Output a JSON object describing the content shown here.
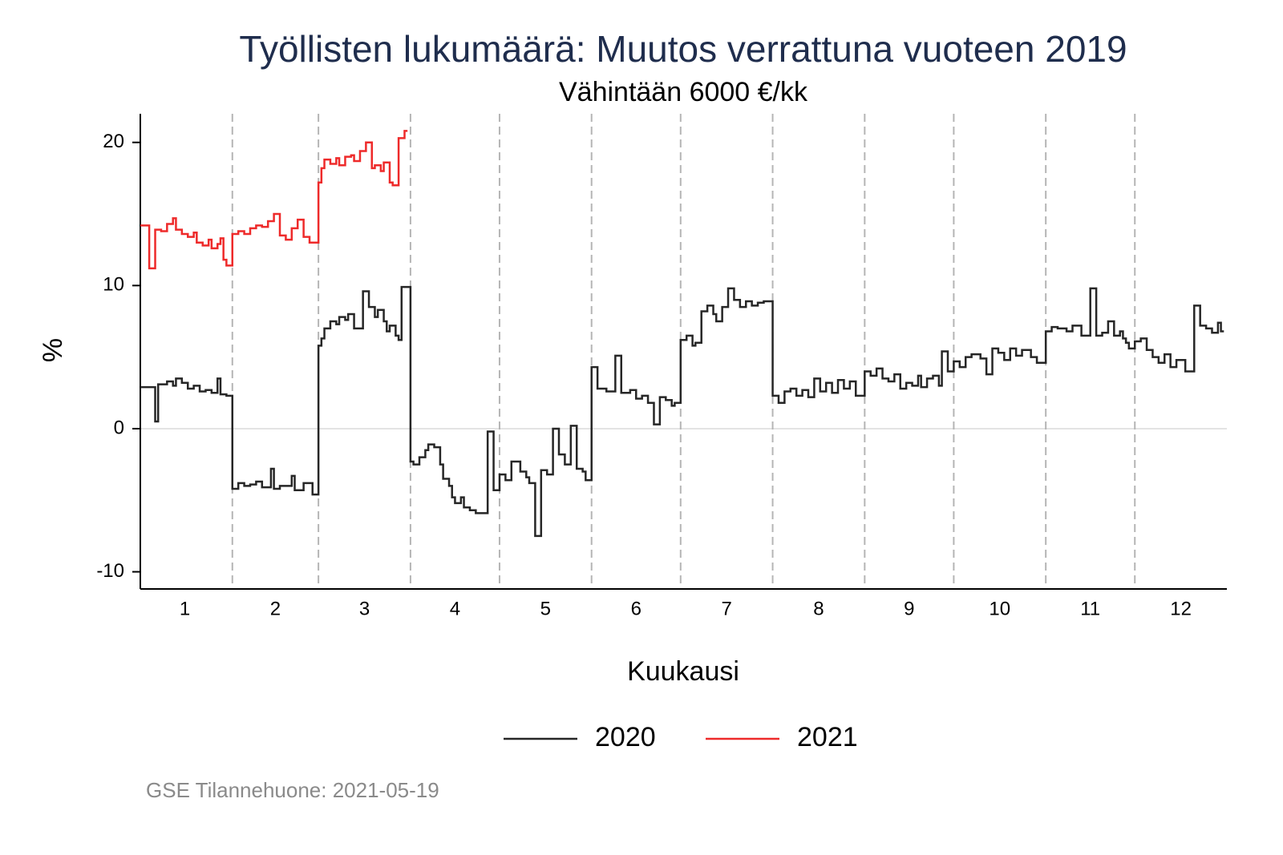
{
  "chart_data": {
    "type": "line",
    "step": "post",
    "title": "Työllisten lukumäärä: Muutos verrattuna vuoteen 2019",
    "subtitle": "Vähintään 6000 €/kk",
    "ylabel": "%",
    "xlabel": "Kuukausi",
    "source": "GSE Tilannehuone: 2021-05-19",
    "xlim": [
      1,
      367
    ],
    "ylim": [
      -11.2,
      22
    ],
    "yticks": [
      -10,
      0,
      10,
      20
    ],
    "xticks": [
      {
        "value": 16,
        "label": "1"
      },
      {
        "value": 46.5,
        "label": "2"
      },
      {
        "value": 76.5,
        "label": "3"
      },
      {
        "value": 107,
        "label": "4"
      },
      {
        "value": 137.5,
        "label": "5"
      },
      {
        "value": 168,
        "label": "6"
      },
      {
        "value": 198.5,
        "label": "7"
      },
      {
        "value": 229.5,
        "label": "8"
      },
      {
        "value": 260,
        "label": "9"
      },
      {
        "value": 290.5,
        "label": "10"
      },
      {
        "value": 321,
        "label": "11"
      },
      {
        "value": 351.5,
        "label": "12"
      }
    ],
    "vlines": [
      32,
      61,
      92,
      122,
      153,
      183,
      214,
      245,
      275,
      306,
      336
    ],
    "reference_line_y": 0,
    "legend": "bottom",
    "series": [
      {
        "name": "2020",
        "color": "#262626",
        "x": [
          1,
          6,
          7,
          10,
          12,
          13,
          15,
          17,
          19,
          21,
          23,
          25,
          27,
          28,
          30,
          32,
          34,
          36,
          38,
          40,
          42,
          45,
          46,
          48,
          52,
          53,
          56,
          59,
          61,
          62,
          63,
          65,
          67,
          68,
          70,
          71,
          73,
          76,
          78,
          80,
          81,
          83,
          84,
          85,
          87,
          88,
          89,
          92,
          93,
          95,
          97,
          98,
          100,
          102,
          103,
          105,
          106,
          107,
          109,
          110,
          112,
          114,
          118,
          120,
          122,
          124,
          126,
          129,
          131,
          132,
          134,
          136,
          138,
          140,
          142,
          144,
          146,
          148,
          150,
          151,
          153,
          155,
          158,
          161,
          163,
          166,
          168,
          170,
          172,
          174,
          176,
          178,
          180,
          181,
          183,
          185,
          187,
          188,
          190,
          192,
          194,
          195,
          197,
          199,
          201,
          203,
          205,
          207,
          209,
          211,
          214,
          216,
          218,
          220,
          222,
          224,
          226,
          228,
          230,
          232,
          234,
          236,
          238,
          240,
          242,
          245,
          247,
          249,
          251,
          253,
          255,
          257,
          259,
          261,
          263,
          264,
          266,
          268,
          270,
          271,
          273,
          275,
          277,
          279,
          281,
          284,
          286,
          288,
          290,
          292,
          294,
          296,
          298,
          301,
          303,
          306,
          308,
          310,
          313,
          315,
          318,
          321,
          323,
          325,
          327,
          329,
          331,
          332,
          333,
          334,
          336,
          338,
          340,
          342,
          344,
          346,
          348,
          350,
          353,
          356,
          358,
          360,
          362,
          364,
          365
        ],
        "values": [
          2.9,
          0.5,
          3.1,
          3.3,
          3.0,
          3.5,
          3.2,
          2.8,
          3.0,
          2.6,
          2.7,
          2.5,
          3.5,
          2.4,
          2.3,
          -4.2,
          -3.8,
          -4.0,
          -3.9,
          -3.7,
          -4.1,
          -2.8,
          -4.2,
          -4.0,
          -3.3,
          -4.3,
          -3.8,
          -4.6,
          5.8,
          6.3,
          7.0,
          7.5,
          7.3,
          7.8,
          7.6,
          8.0,
          7.0,
          9.6,
          8.5,
          7.8,
          8.3,
          7.5,
          6.8,
          7.2,
          6.5,
          6.2,
          9.9,
          -2.3,
          -2.5,
          -2.0,
          -1.5,
          -1.1,
          -1.3,
          -2.5,
          -3.5,
          -4.0,
          -4.8,
          -5.2,
          -4.8,
          -5.5,
          -5.7,
          -5.9,
          -0.2,
          -4.3,
          -3.2,
          -3.6,
          -2.3,
          -3.0,
          -3.4,
          -3.8,
          -7.5,
          -2.9,
          -3.2,
          0.0,
          -1.8,
          -2.5,
          0.2,
          -2.8,
          -3.0,
          -3.6,
          4.3,
          2.8,
          2.6,
          5.1,
          2.5,
          2.7,
          2.1,
          2.3,
          1.8,
          0.3,
          2.2,
          2.0,
          1.6,
          1.8,
          6.2,
          6.5,
          5.8,
          6.0,
          8.2,
          8.6,
          8.0,
          7.5,
          8.5,
          9.8,
          9.0,
          8.5,
          8.9,
          8.6,
          8.8,
          8.9,
          2.3,
          1.8,
          2.6,
          2.8,
          2.3,
          2.7,
          2.2,
          3.5,
          2.6,
          3.2,
          2.5,
          3.4,
          2.8,
          3.3,
          2.3,
          4.0,
          3.7,
          4.2,
          3.5,
          3.3,
          3.8,
          2.8,
          3.2,
          3.0,
          3.7,
          2.9,
          3.5,
          3.7,
          3.0,
          5.4,
          4.0,
          4.7,
          4.3,
          5.0,
          5.2,
          4.9,
          3.8,
          5.6,
          5.3,
          4.8,
          5.6,
          5.1,
          5.5,
          5.0,
          4.6,
          6.8,
          7.1,
          7.0,
          6.8,
          7.2,
          6.5,
          9.8,
          6.5,
          6.7,
          7.5,
          6.5,
          6.8,
          6.3,
          6.0,
          5.6,
          6.1,
          6.3,
          5.5,
          5.0,
          4.6,
          5.2,
          4.3,
          4.8,
          4.0,
          8.6,
          7.2,
          7.0,
          6.7,
          7.4,
          6.8
        ]
      },
      {
        "name": "2021",
        "color": "#ee2a2a",
        "x": [
          1,
          4,
          6,
          8,
          10,
          12,
          13,
          15,
          17,
          19,
          20,
          22,
          24,
          25,
          27,
          28,
          29,
          30,
          32,
          34,
          36,
          38,
          40,
          42,
          44,
          46,
          48,
          50,
          52,
          54,
          56,
          58,
          61,
          62,
          63,
          65,
          67,
          68,
          70,
          72,
          73,
          75,
          77,
          79,
          80,
          82,
          83,
          85,
          86,
          88,
          90
        ],
        "values": [
          14.2,
          11.2,
          13.9,
          13.8,
          14.3,
          14.7,
          13.9,
          13.6,
          13.4,
          13.7,
          13.0,
          12.8,
          13.2,
          12.6,
          12.9,
          13.3,
          11.8,
          11.4,
          13.6,
          13.8,
          13.6,
          14.0,
          14.2,
          14.1,
          14.5,
          15.0,
          13.5,
          13.2,
          14.0,
          14.6,
          13.4,
          13.0,
          17.2,
          18.2,
          18.8,
          18.5,
          18.9,
          18.4,
          19.0,
          19.1,
          18.7,
          19.4,
          20.0,
          18.2,
          18.4,
          18.0,
          18.6,
          17.2,
          17.0,
          20.3,
          20.8
        ]
      }
    ]
  }
}
